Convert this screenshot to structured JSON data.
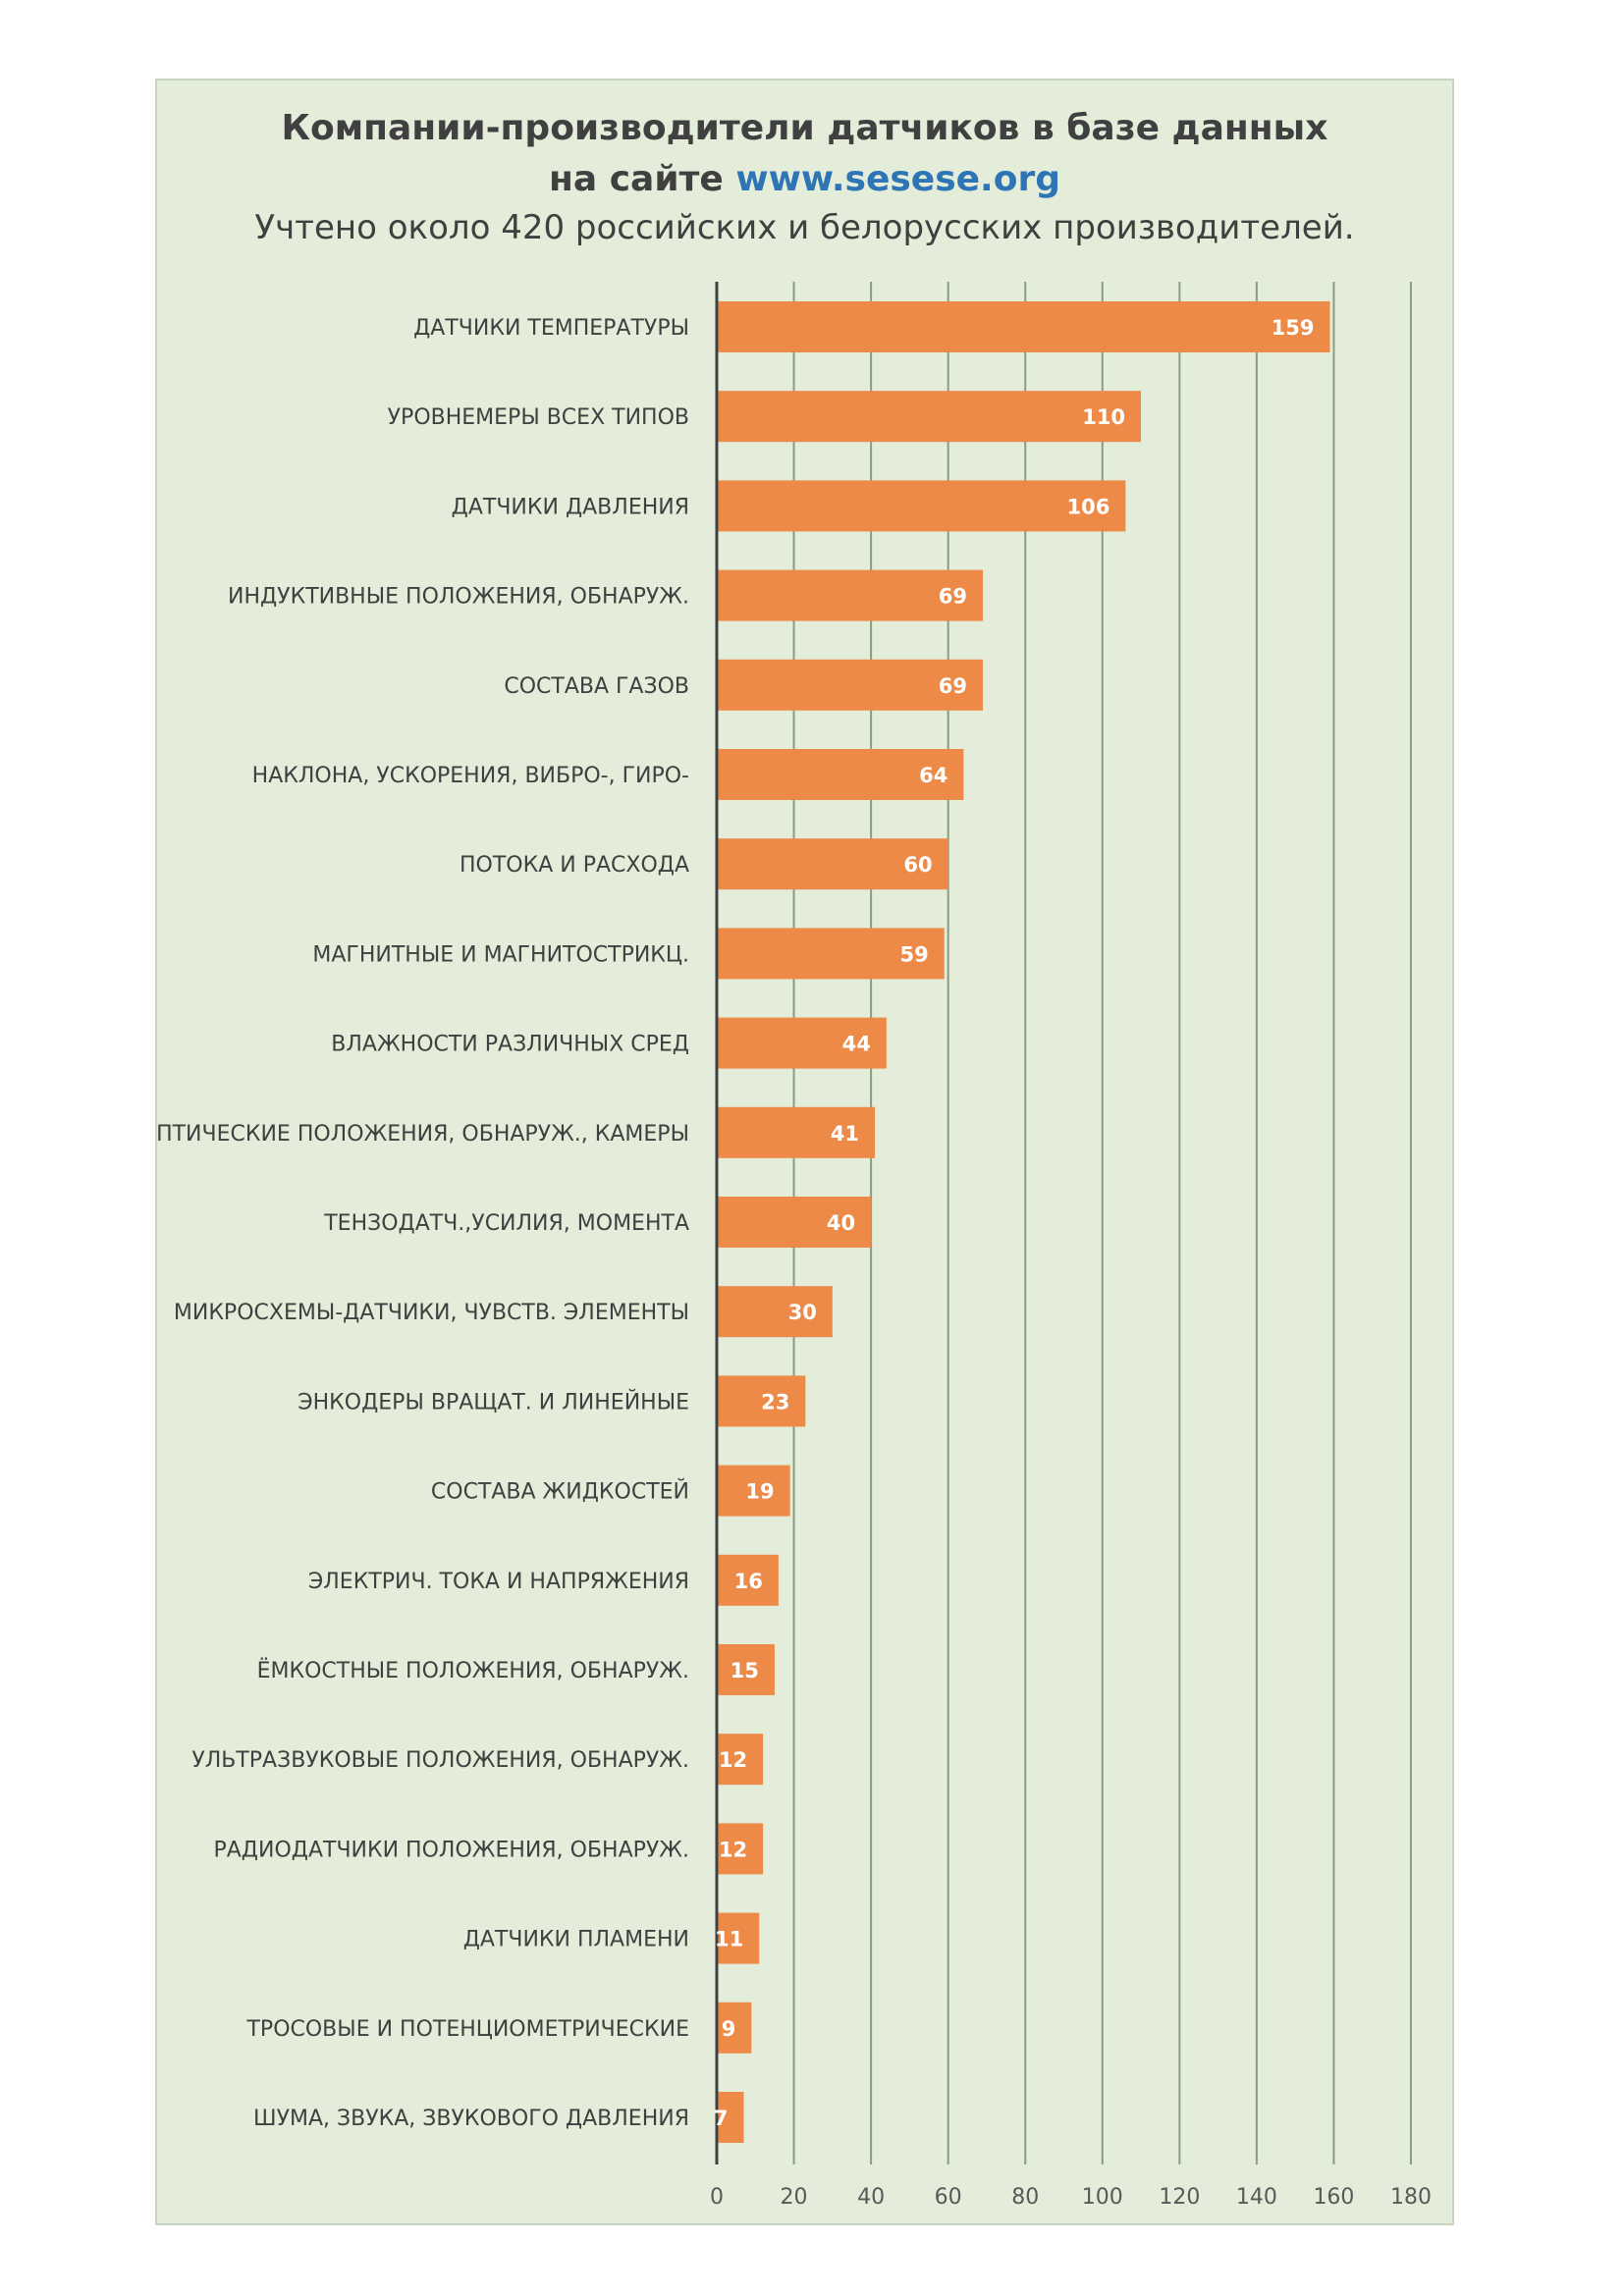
{
  "header": {
    "title_line1": "Компании-производители датчиков в базе данных",
    "title_line2_prefix": "на сайте ",
    "title_link": "www.sesese.org",
    "subtitle": "Учтено около 420 российских и белорусских производителей."
  },
  "colors": {
    "bar": "#ed8a47",
    "background": "#e3edd9",
    "link": "#2e75b6",
    "gridline": "#8c9c80",
    "axis": "#404040"
  },
  "chart_data": {
    "type": "bar",
    "orientation": "horizontal",
    "title": "Компании-производители датчиков в базе данных на сайте www.sesese.org",
    "subtitle": "Учтено около 420 российских и белорусских производителей.",
    "categories": [
      "ДАТЧИКИ ТЕМПЕРАТУРЫ",
      "УРОВНЕМЕРЫ ВСЕХ ТИПОВ",
      "ДАТЧИКИ ДАВЛЕНИЯ",
      "ИНДУКТИВНЫЕ ПОЛОЖЕНИЯ, ОБНАРУЖ.",
      "СОСТАВА ГАЗОВ",
      "НАКЛОНА, УСКОРЕНИЯ, ВИБРО-, ГИРО-",
      "ПОТОКА И РАСХОДА",
      "МАГНИТНЫЕ И МАГНИТОСТРИКЦ.",
      "ВЛАЖНОСТИ РАЗЛИЧНЫХ СРЕД",
      "ОПТИЧЕСКИЕ ПОЛОЖЕНИЯ, ОБНАРУЖ., КАМЕРЫ",
      "ТЕНЗОДАТЧ.,УСИЛИЯ, МОМЕНТА",
      "МИКРОСХЕМЫ-ДАТЧИКИ, ЧУВСТВ. ЭЛЕМЕНТЫ",
      "ЭНКОДЕРЫ ВРАЩАТ. И ЛИНЕЙНЫЕ",
      "СОСТАВА ЖИДКОСТЕЙ",
      "ЭЛЕКТРИЧ. ТОКА И НАПРЯЖЕНИЯ",
      "ЁМКОСТНЫЕ ПОЛОЖЕНИЯ, ОБНАРУЖ.",
      "УЛЬТРАЗВУКОВЫЕ ПОЛОЖЕНИЯ, ОБНАРУЖ.",
      "РАДИОДАТЧИКИ ПОЛОЖЕНИЯ, ОБНАРУЖ.",
      "ДАТЧИКИ ПЛАМЕНИ",
      "ТРОСОВЫЕ И ПОТЕНЦИОМЕТРИЧЕСКИЕ",
      "ШУМА, ЗВУКА, ЗВУКОВОГО ДАВЛЕНИЯ"
    ],
    "values": [
      159,
      110,
      106,
      69,
      69,
      64,
      60,
      59,
      44,
      41,
      40,
      30,
      23,
      19,
      16,
      15,
      12,
      12,
      11,
      9,
      7
    ],
    "xlim": [
      0,
      180
    ],
    "xticks": [
      0,
      20,
      40,
      60,
      80,
      100,
      120,
      140,
      160,
      180
    ],
    "data_labels": true,
    "grid": true,
    "legend": "none"
  }
}
